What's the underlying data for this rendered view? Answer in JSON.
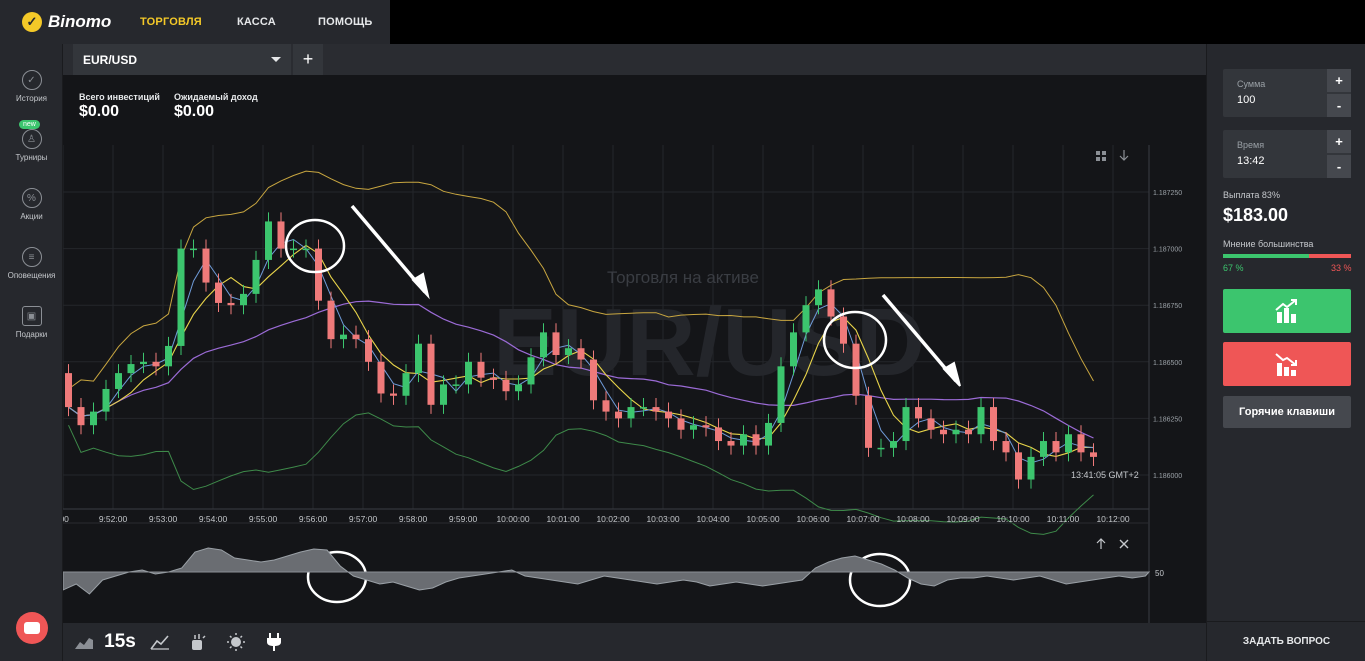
{
  "header": {
    "logo_text": "Binomo",
    "nav": [
      {
        "label": "ТОРГОВЛЯ",
        "active": true
      },
      {
        "label": "КАССА",
        "active": false
      },
      {
        "label": "ПОМОЩЬ",
        "active": false
      }
    ]
  },
  "sidebar": {
    "items": [
      {
        "label": "История",
        "icon": "check-circle-icon"
      },
      {
        "label": "Турниры",
        "icon": "trophy-icon"
      },
      {
        "label": "Акции",
        "icon": "percent-icon"
      },
      {
        "label": "Оповещения",
        "icon": "bell-icon"
      },
      {
        "label": "Подарки",
        "icon": "gift-icon"
      }
    ],
    "new_badge": "new"
  },
  "tab": {
    "asset": "EUR/USD",
    "add_label": "+"
  },
  "stats": {
    "total_label": "Всего инвестиций",
    "total_value": "$0.00",
    "expected_label": "Ожидаемый доход",
    "expected_value": "$0.00"
  },
  "chart": {
    "watermark": "EUR/USD",
    "watermark_sub": "Торговля на активе",
    "timestamp": "13:41:05 GMT+2",
    "oscillator_level": "50",
    "price_ticks": [
      "1.187250",
      "1.187000",
      "1.186750",
      "1.186500",
      "1.186250",
      "1.186000"
    ],
    "time_ticks": [
      ":00",
      "9:52:00",
      "9:53:00",
      "9:54:00",
      "9:55:00",
      "9:56:00",
      "9:57:00",
      "9:58:00",
      "9:59:00",
      "10:00:00",
      "10:01:00",
      "10:02:00",
      "10:03:00",
      "10:04:00",
      "10:05:00",
      "10:06:00",
      "10:07:00",
      "10:08:00",
      "10:09:00",
      "10:10:00",
      "10:11:00",
      "10:12:00"
    ],
    "colors": {
      "up": "#3cc56e",
      "down": "#ef7a7a",
      "bb": "#c8a640",
      "ma": "#9b6bd6",
      "ema": "#e8d44a",
      "fast": "#6f9bd8",
      "lower": "#3e8a4a"
    }
  },
  "bottom_tools": [
    {
      "label": "",
      "icon": "area-chart-icon"
    },
    {
      "label": "15s",
      "icon": "timeframe-icon"
    },
    {
      "label": "",
      "icon": "drawing-tools-icon"
    },
    {
      "label": "",
      "icon": "indicators-icon"
    },
    {
      "label": "",
      "icon": "theme-icon"
    },
    {
      "label": "",
      "icon": "plug-icon"
    }
  ],
  "panel": {
    "amount_label": "Сумма",
    "amount_value": "100",
    "time_label": "Время",
    "time_value": "13:42",
    "plus": "+",
    "minus": "-",
    "payout_label": "Выплата 83%",
    "payout_value": "$183.00",
    "majority_label": "Мнение большинства",
    "up_pct": "67 %",
    "down_pct": "33 %",
    "up_fraction": 0.67,
    "hotkeys_label": "Горячие клавиши",
    "ask_label": "ЗАДАТЬ ВОПРОС"
  }
}
